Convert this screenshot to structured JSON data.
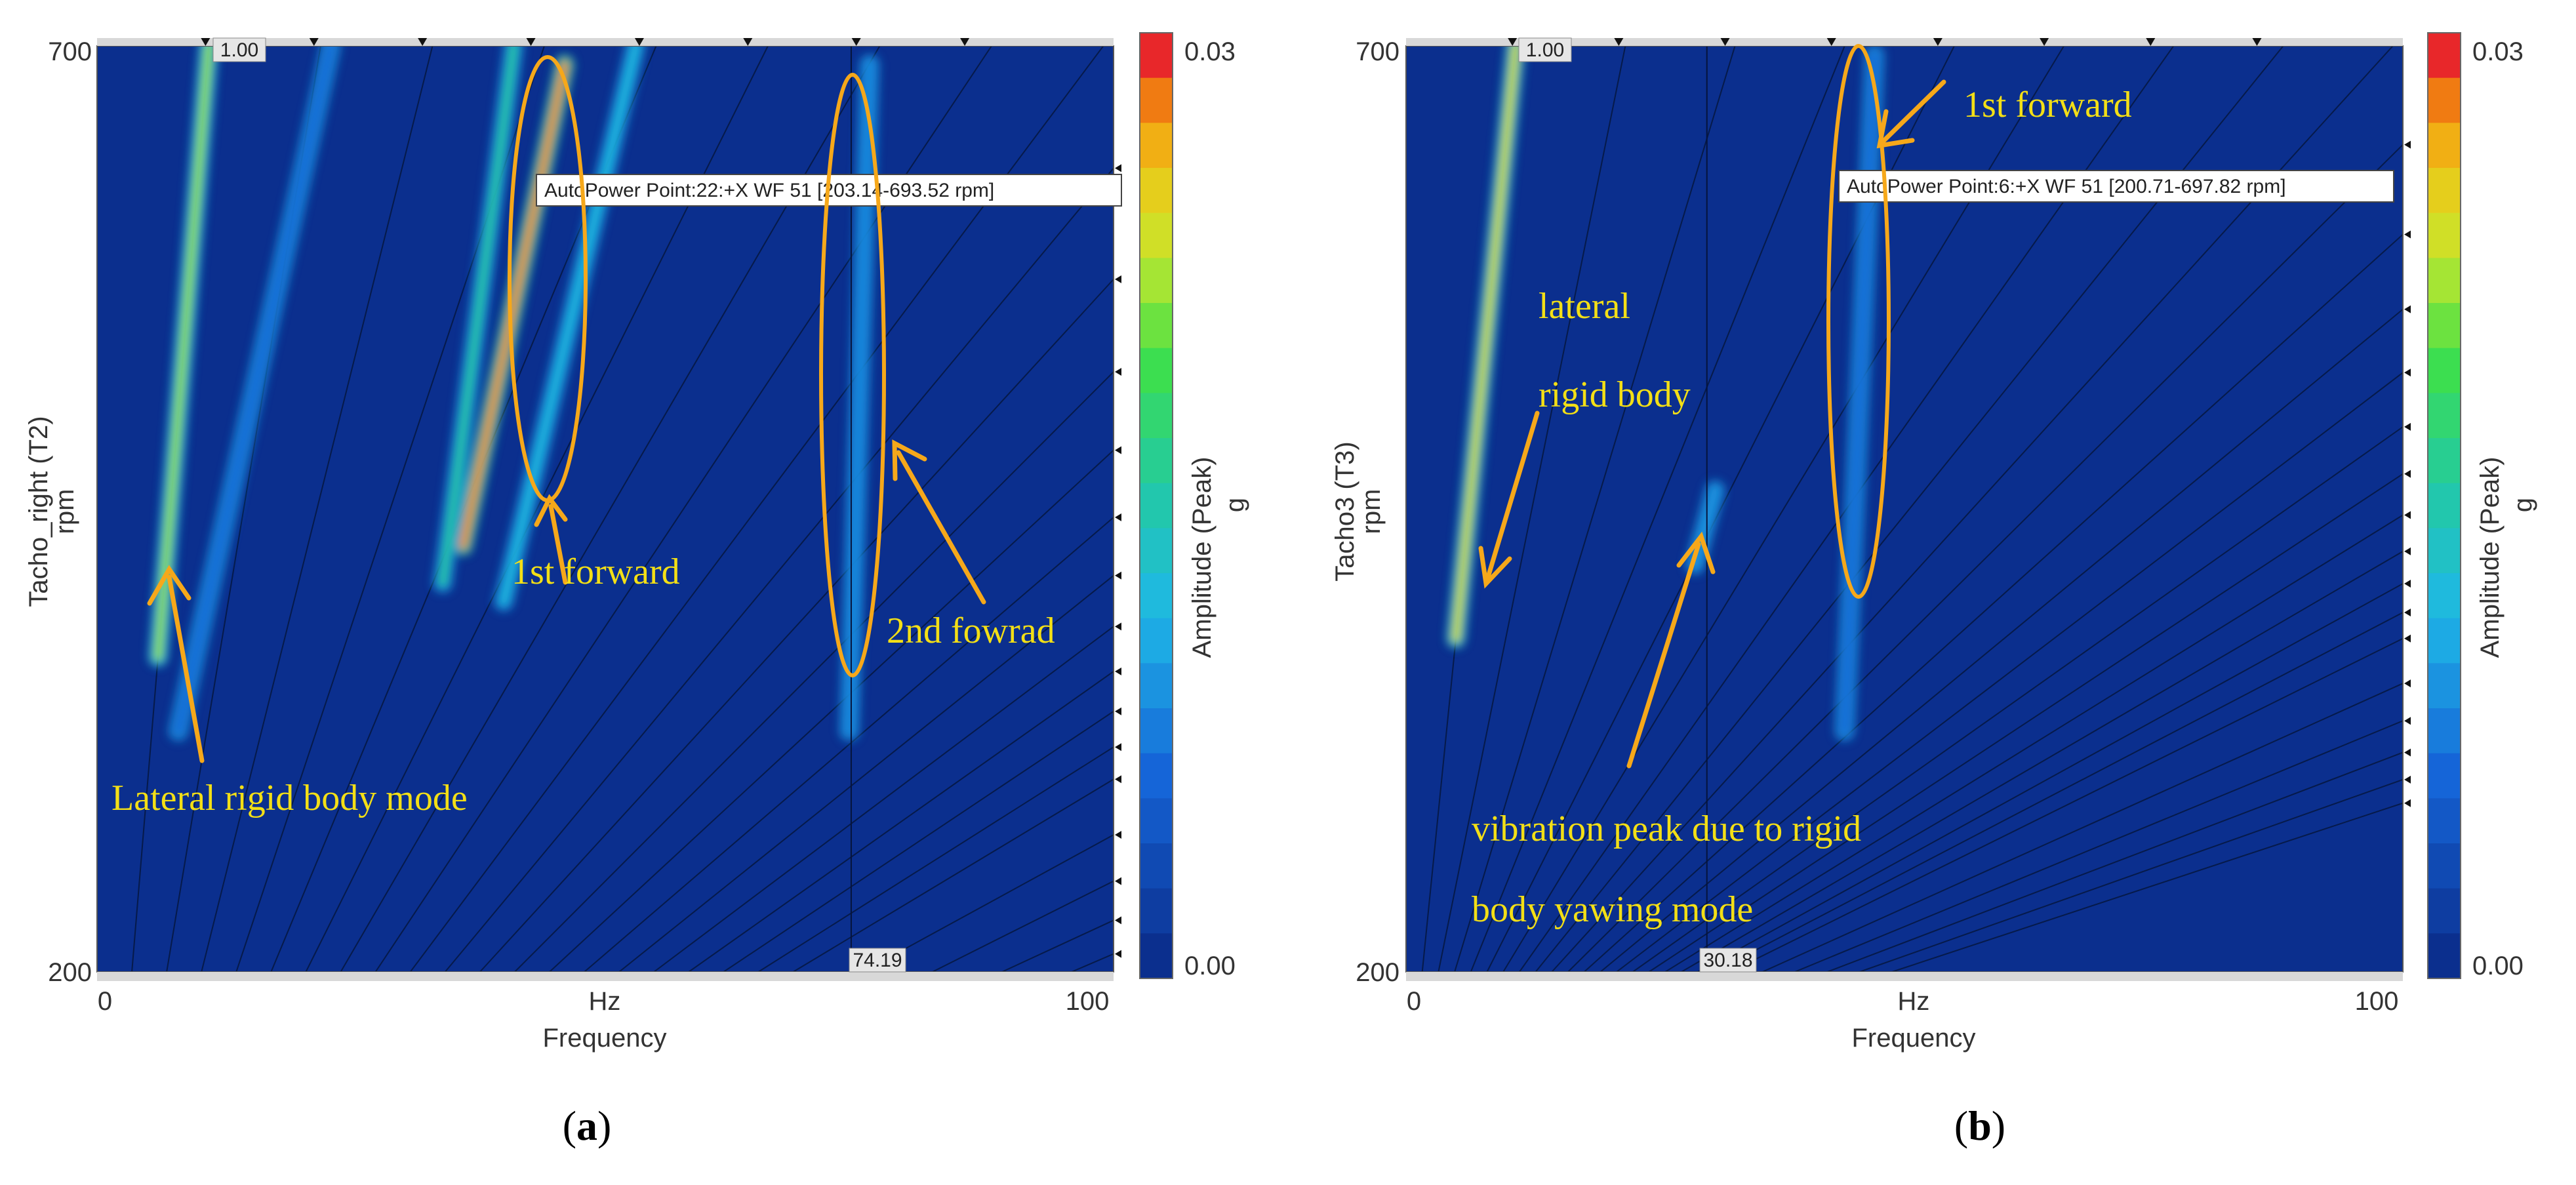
{
  "chart_data": [
    {
      "type": "heatmap",
      "panel_label": "a",
      "xlabel": "Frequency",
      "x_unit": "Hz",
      "ylabel_line1": "Tacho_right (T2)",
      "ylabel_line2": "rpm",
      "xlim": [
        0,
        100
      ],
      "ylim": [
        200,
        700
      ],
      "x_ticks": [
        "0",
        "100"
      ],
      "y_ticks": [
        "700",
        "200"
      ],
      "order_marker_label": "1.00",
      "cursor_label": "74.19",
      "colorbar": {
        "label": "Amplitude (Peak)",
        "unit": "g",
        "max_label": "0.03",
        "min_label": "0.00",
        "min": 0.0,
        "max": 0.03
      },
      "tooltip": "AutoPower Point:22:+X WF 51 [203.14-693.52 rpm]",
      "annotations": {
        "lateral": "Lateral rigid body mode",
        "first_forward": "1st forward",
        "second_forward": "2nd fowrad"
      },
      "ridges": [
        {
          "name": "order 1 (lateral rigid body)",
          "from": [
            6,
            370
          ],
          "to": [
            11,
            700
          ],
          "level": 0.022
        },
        {
          "name": "order 2",
          "from": [
            8,
            330
          ],
          "to": [
            23,
            700
          ],
          "level": 0.006
        },
        {
          "name": "1st forward",
          "from": [
            36,
            430
          ],
          "to": [
            46,
            690
          ],
          "level": 0.028
        },
        {
          "name": "1st forward band",
          "from": [
            34,
            410
          ],
          "to": [
            41,
            700
          ],
          "level": 0.016
        },
        {
          "name": "harmonic",
          "from": [
            40,
            400
          ],
          "to": [
            53,
            700
          ],
          "level": 0.012
        },
        {
          "name": "2nd forward",
          "from": [
            74,
            330
          ],
          "to": [
            76,
            690
          ],
          "level": 0.008
        }
      ]
    },
    {
      "type": "heatmap",
      "panel_label": "b",
      "xlabel": "Frequency",
      "x_unit": "Hz",
      "ylabel_line1": "Tacho3 (T3)",
      "ylabel_line2": "rpm",
      "xlim": [
        0,
        100
      ],
      "ylim": [
        200,
        700
      ],
      "x_ticks": [
        "0",
        "100"
      ],
      "y_ticks": [
        "700",
        "200"
      ],
      "order_marker_label": "1.00",
      "cursor_label": "30.18",
      "colorbar": {
        "label": "Amplitude (Peak)",
        "unit": "g",
        "max_label": "0.03",
        "min_label": "0.00",
        "min": 0.0,
        "max": 0.03
      },
      "tooltip": "AutoPower Point:6:+X WF 51 [200.71-697.82 rpm]",
      "annotations": {
        "first_forward": "1st forward",
        "lateral_line1": "lateral",
        "lateral_line2": "rigid  body",
        "yaw_line1": "vibration peak due to rigid",
        "yaw_line2": "body yawing mode"
      },
      "ridges": [
        {
          "name": "order 1 (lateral rigid body)",
          "from": [
            5,
            380
          ],
          "to": [
            11,
            700
          ],
          "level": 0.024
        },
        {
          "name": "yawing peak",
          "from": [
            29,
            420
          ],
          "to": [
            31,
            460
          ],
          "level": 0.009
        },
        {
          "name": "1st forward",
          "from": [
            44,
            330
          ],
          "to": [
            47,
            695
          ],
          "level": 0.006
        }
      ]
    }
  ]
}
